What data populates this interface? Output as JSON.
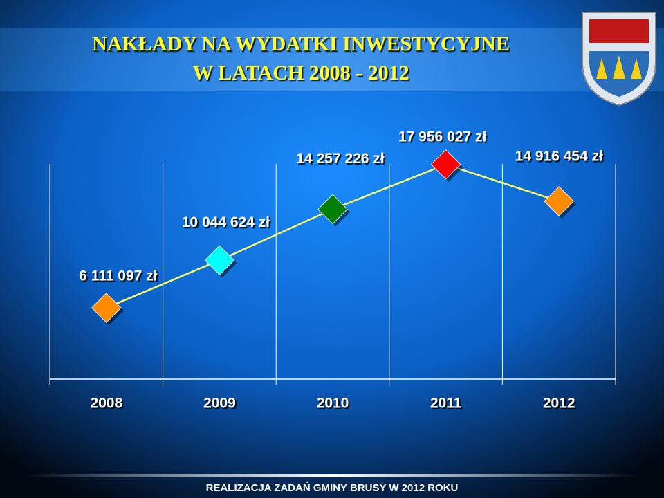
{
  "chart_data": {
    "type": "line",
    "title": [
      "NAKŁADY NA WYDATKI INWESTYCYJNE",
      "W LATACH 2008 - 2012"
    ],
    "categories": [
      "2008",
      "2009",
      "2010",
      "2011",
      "2012"
    ],
    "values": [
      6111097,
      10044624,
      14257226,
      17956027,
      14916454
    ],
    "value_labels": [
      "6 111 097 zł",
      "10 044 624 zł",
      "14 257 226 zł",
      "17 956 027 zł",
      "14 916 454 zł"
    ],
    "colors": [
      "#ff8c00",
      "#00ffff",
      "#008000",
      "#ff0000",
      "#ff8c00"
    ],
    "line_color": "#ffff66",
    "ylim": [
      0,
      18000000
    ],
    "grid": true
  },
  "footer": "REALIZACJA ZADAŃ GMINY BRUSY W 2012 ROKU"
}
